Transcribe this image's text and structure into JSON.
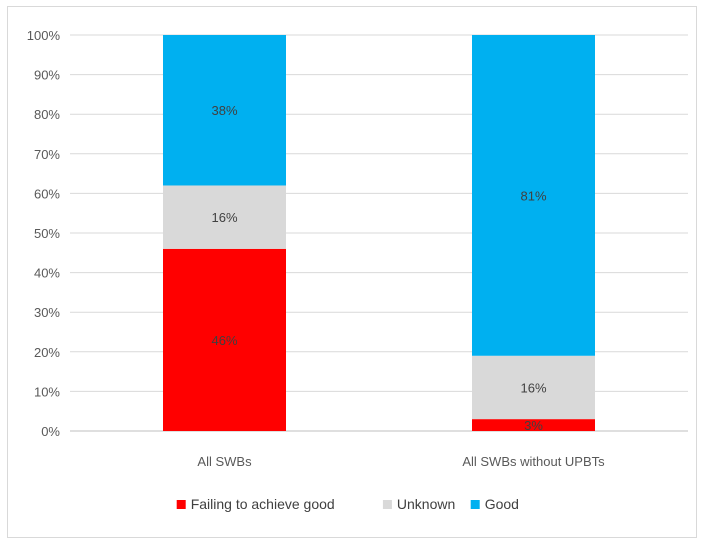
{
  "chart_data": {
    "type": "bar",
    "stacked": true,
    "categories": [
      "All SWBs",
      "All SWBs without UPBTs"
    ],
    "series": [
      {
        "name": "Failing to achieve good",
        "values": [
          46,
          3
        ],
        "color": "#ff0000"
      },
      {
        "name": "Unknown",
        "values": [
          16,
          16
        ],
        "color": "#d9d9d9"
      },
      {
        "name": "Good",
        "values": [
          38,
          81
        ],
        "color": "#00b0f0"
      }
    ],
    "data_labels": [
      [
        "46%",
        "3%"
      ],
      [
        "16%",
        "16%"
      ],
      [
        "38%",
        "81%"
      ]
    ],
    "y_ticks": [
      "0%",
      "10%",
      "20%",
      "30%",
      "40%",
      "50%",
      "60%",
      "70%",
      "80%",
      "90%",
      "100%"
    ],
    "ylim": [
      0,
      100
    ],
    "grid": true,
    "legend_position": "bottom",
    "title": "",
    "xlabel": "",
    "ylabel": ""
  }
}
